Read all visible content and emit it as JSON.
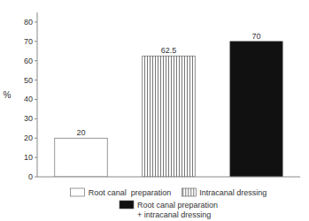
{
  "chart_data": {
    "type": "bar",
    "y_label": "%",
    "categories": [
      null
    ],
    "series": [
      {
        "name": "Root canal  preparation",
        "color": "white",
        "values": [
          20
        ]
      },
      {
        "name": "Intracanal dressing",
        "color": "white",
        "marker": "vertical-hatch",
        "values": [
          62.5
        ]
      },
      {
        "name": "Root canal preparation\n+ intracanal dressing",
        "color": "#111111",
        "values": [
          70
        ]
      }
    ],
    "ylim": [
      0,
      85
    ],
    "yticks": [
      0,
      10,
      20,
      30,
      40,
      50,
      60,
      70,
      80
    ],
    "grid": false,
    "legend": "bottom",
    "data_labels": true,
    "tick_labels": "y"
  }
}
